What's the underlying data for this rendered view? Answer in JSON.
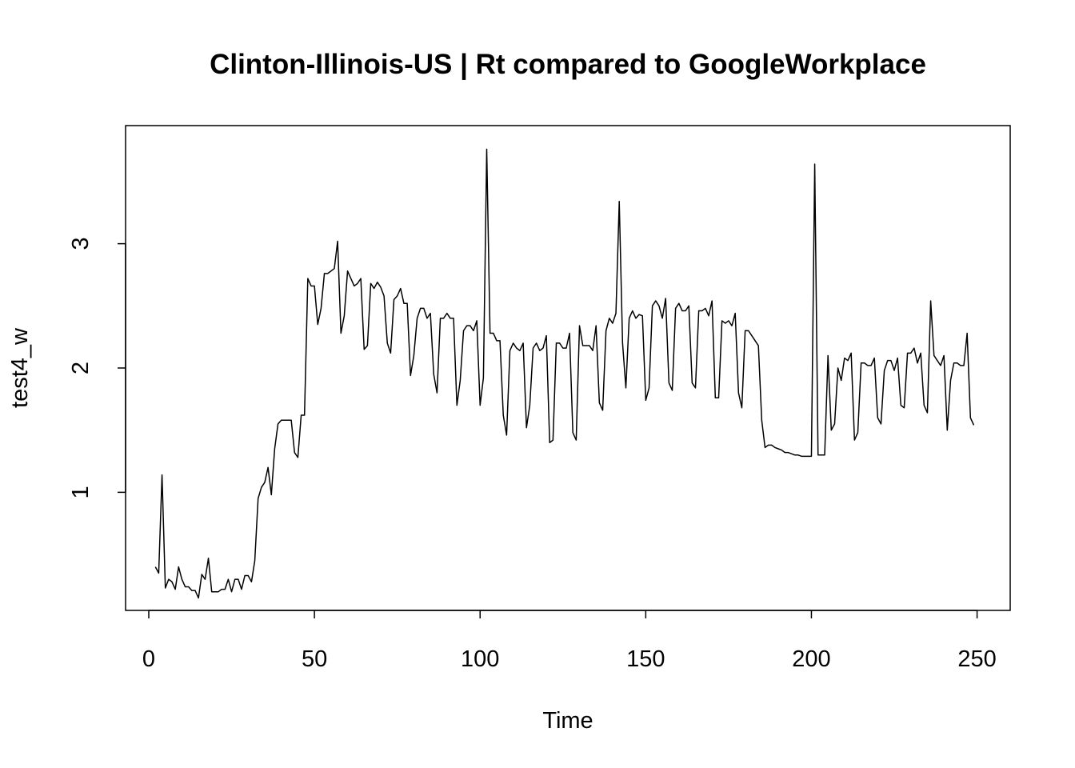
{
  "chart_data": {
    "type": "line",
    "title": "Clinton-Illinois-US | Rt compared to GoogleWorkplace",
    "xlabel": "Time",
    "ylabel": "test4_w",
    "xlim": [
      -7,
      260
    ],
    "ylim": [
      0.05,
      3.95
    ],
    "x_ticks": [
      0,
      50,
      100,
      150,
      200,
      250
    ],
    "y_ticks": [
      1,
      2,
      3
    ],
    "grid": false,
    "legend": "none",
    "line_color": "#000000",
    "series": [
      {
        "x_start": 2,
        "values": [
          0.4,
          0.35,
          1.14,
          0.23,
          0.3,
          0.28,
          0.22,
          0.4,
          0.3,
          0.24,
          0.24,
          0.21,
          0.21,
          0.15,
          0.34,
          0.3,
          0.47,
          0.2,
          0.2,
          0.2,
          0.22,
          0.22,
          0.3,
          0.2,
          0.3,
          0.3,
          0.22,
          0.33,
          0.33,
          0.28,
          0.45,
          0.95,
          1.04,
          1.08,
          1.2,
          0.98,
          1.35,
          1.55,
          1.58,
          1.58,
          1.58,
          1.58,
          1.32,
          1.28,
          1.62,
          1.62,
          2.72,
          2.66,
          2.66,
          2.35,
          2.48,
          2.76,
          2.76,
          2.78,
          2.8,
          3.02,
          2.28,
          2.42,
          2.78,
          2.72,
          2.66,
          2.68,
          2.72,
          2.15,
          2.18,
          2.68,
          2.64,
          2.69,
          2.65,
          2.58,
          2.2,
          2.12,
          2.55,
          2.58,
          2.64,
          2.52,
          2.52,
          1.94,
          2.1,
          2.4,
          2.48,
          2.48,
          2.4,
          2.44,
          1.95,
          1.8,
          2.4,
          2.4,
          2.44,
          2.4,
          2.4,
          1.7,
          1.9,
          2.3,
          2.34,
          2.34,
          2.3,
          2.38,
          1.7,
          1.92,
          3.76,
          2.28,
          2.28,
          2.22,
          2.22,
          1.62,
          1.46,
          2.14,
          2.2,
          2.16,
          2.14,
          2.2,
          1.52,
          1.7,
          2.16,
          2.2,
          2.14,
          2.16,
          2.26,
          1.4,
          1.42,
          2.2,
          2.2,
          2.16,
          2.16,
          2.28,
          1.48,
          1.42,
          2.34,
          2.18,
          2.18,
          2.18,
          2.14,
          2.34,
          1.72,
          1.66,
          2.3,
          2.4,
          2.36,
          2.44,
          3.34,
          2.2,
          1.84,
          2.4,
          2.46,
          2.4,
          2.43,
          2.42,
          1.74,
          1.84,
          2.5,
          2.54,
          2.5,
          2.4,
          2.56,
          1.88,
          1.82,
          2.48,
          2.52,
          2.46,
          2.46,
          2.5,
          1.88,
          1.84,
          2.46,
          2.46,
          2.48,
          2.42,
          2.54,
          1.76,
          1.76,
          2.38,
          2.36,
          2.38,
          2.34,
          2.44,
          1.8,
          1.68,
          2.3,
          2.3,
          2.26,
          2.22,
          2.18,
          1.58,
          1.36,
          1.38,
          1.38,
          1.36,
          1.35,
          1.34,
          1.32,
          1.32,
          1.31,
          1.3,
          1.3,
          1.29,
          1.29,
          1.29,
          1.29,
          3.64,
          1.3,
          1.3,
          1.3,
          2.1,
          1.5,
          1.55,
          2.0,
          1.9,
          2.08,
          2.06,
          2.12,
          1.42,
          1.48,
          2.04,
          2.04,
          2.02,
          2.02,
          2.08,
          1.6,
          1.55,
          1.98,
          2.06,
          2.06,
          1.98,
          2.08,
          1.7,
          1.68,
          2.12,
          2.12,
          2.16,
          2.04,
          2.12,
          1.7,
          1.64,
          2.54,
          2.1,
          2.06,
          2.02,
          2.1,
          1.5,
          1.9,
          2.04,
          2.04,
          2.02,
          2.02,
          2.28,
          1.6,
          1.54
        ]
      }
    ]
  }
}
